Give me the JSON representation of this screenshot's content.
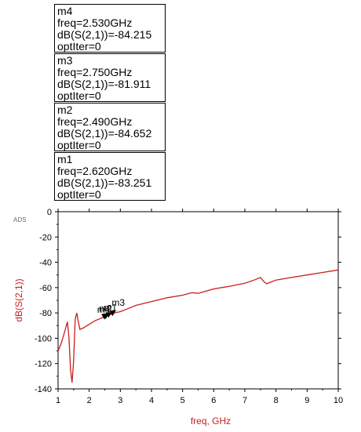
{
  "app_label": "ADS",
  "marker_boxes": [
    {
      "name": "m4",
      "freq": "freq=2.530GHz",
      "value": "dB(S(2,1))=-84.215",
      "iter": "optIter=0"
    },
    {
      "name": "m3",
      "freq": "freq=2.750GHz",
      "value": "dB(S(2,1))=-81.911",
      "iter": "optIter=0"
    },
    {
      "name": "m2",
      "freq": "freq=2.490GHz",
      "value": "dB(S(2,1))=-84.652",
      "iter": "optIter=0"
    },
    {
      "name": "m1",
      "freq": "freq=2.620GHz",
      "value": "dB(S(2,1))=-83.251",
      "iter": "optIter=0"
    }
  ],
  "colors": {
    "trace": "#c81e1e",
    "axis": "#c81e1e",
    "text": "#000000"
  },
  "chart_data": {
    "type": "line",
    "title": "",
    "xlabel": "freq, GHz",
    "ylabel": "dB(S(2,1))",
    "xlim": [
      1,
      10
    ],
    "ylim": [
      -140,
      0
    ],
    "x_ticks": [
      1,
      2,
      3,
      4,
      5,
      6,
      7,
      8,
      9,
      10
    ],
    "y_ticks": [
      0,
      -20,
      -40,
      -60,
      -80,
      -100,
      -120,
      -140
    ],
    "grid": false,
    "series": [
      {
        "name": "",
        "x": [
          1.0,
          1.1,
          1.2,
          1.3,
          1.35,
          1.4,
          1.45,
          1.5,
          1.55,
          1.6,
          1.65,
          1.7,
          1.8,
          2.0,
          2.2,
          2.4,
          2.6,
          2.8,
          3.0,
          3.2,
          3.5,
          4.0,
          4.5,
          5.0,
          5.3,
          5.5,
          6.0,
          6.5,
          7.0,
          7.3,
          7.5,
          7.6,
          7.7,
          7.8,
          8.0,
          8.5,
          9.0,
          9.5,
          10.0
        ],
        "y": [
          -110,
          -104,
          -96,
          -87,
          -100,
          -125,
          -135,
          -118,
          -85,
          -80,
          -87,
          -93,
          -92,
          -89,
          -86,
          -84,
          -82,
          -80,
          -79,
          -77,
          -74,
          -71,
          -68,
          -66,
          -64,
          -64.5,
          -61,
          -59,
          -56.5,
          -54,
          -52,
          -55,
          -57,
          -56,
          -54,
          -52,
          -50,
          -48,
          -46
        ]
      }
    ],
    "markers": [
      {
        "name": "m4",
        "x": 2.53,
        "y": -84.215
      },
      {
        "name": "m3",
        "x": 2.75,
        "y": -81.911
      },
      {
        "name": "m2",
        "x": 2.49,
        "y": -84.652
      },
      {
        "name": "m1",
        "x": 2.62,
        "y": -83.251
      }
    ]
  }
}
